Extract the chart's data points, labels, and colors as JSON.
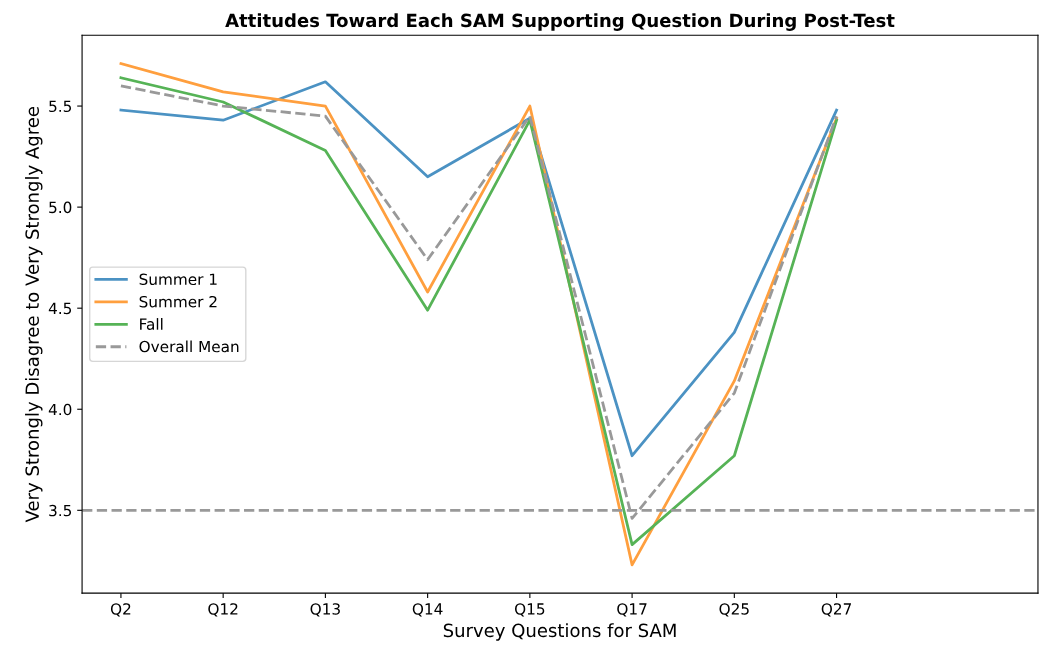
{
  "chart_data": {
    "type": "line",
    "title": "Attitudes Toward Each SAM Supporting Question During Post-Test",
    "xlabel": "Survey Questions for SAM",
    "ylabel": "Very Strongly Disagree to Very Strongly Agree",
    "categories": [
      "Q2",
      "Q12",
      "Q13",
      "Q14",
      "Q15",
      "Q17",
      "Q25",
      "Q27"
    ],
    "series": [
      {
        "name": "Summer 1",
        "color": "#4b92c3",
        "values": [
          5.48,
          5.43,
          5.62,
          5.15,
          5.44,
          3.77,
          4.38,
          5.48
        ]
      },
      {
        "name": "Summer 2",
        "color": "#ff9f3e",
        "values": [
          5.71,
          5.57,
          5.5,
          4.58,
          5.5,
          3.23,
          4.14,
          5.44
        ]
      },
      {
        "name": "Fall",
        "color": "#56b356",
        "values": [
          5.64,
          5.52,
          5.28,
          4.49,
          5.43,
          3.33,
          3.77,
          5.43
        ]
      },
      {
        "name": "Overall Mean",
        "color": "#999999",
        "line_style": "dashed",
        "values": [
          5.6,
          5.5,
          5.45,
          4.74,
          5.45,
          3.46,
          4.08,
          5.45
        ]
      }
    ],
    "ylim": [
      3.09,
      5.85
    ],
    "yticks": [
      3.5,
      {
        "value": 4,
        "label": "4.0"
      },
      4.5,
      {
        "value": 5,
        "label": "5.0"
      },
      5.5
    ],
    "ref_lines": [
      {
        "axis": "y",
        "value": 3.5,
        "color": "#999999",
        "line_style": "dashed"
      }
    ],
    "grid": false,
    "legend": "left",
    "marker": "none",
    "line_style": "solid"
  }
}
